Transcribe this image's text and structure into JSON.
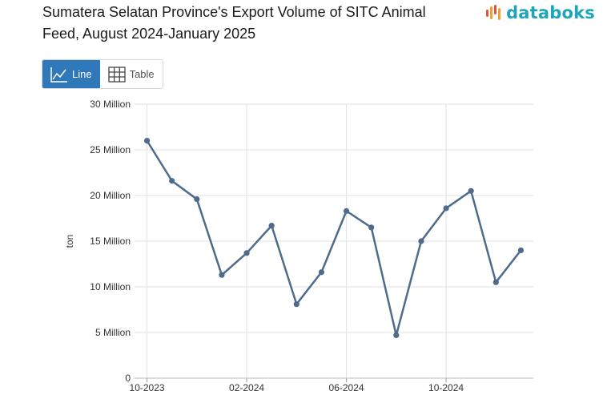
{
  "header": {
    "title": "Sumatera Selatan Province's Export Volume of SITC Animal Feed, August 2024-January 2025",
    "brand": "databoks",
    "brand_color": "#1fa5b9",
    "brand_mark_colors": [
      "#e8503a",
      "#f0a030",
      "#1fa5b9"
    ]
  },
  "view_toggle": {
    "line_label": "Line",
    "table_label": "Table",
    "active": "line",
    "active_color": "#2f79ba"
  },
  "chart_data": {
    "type": "line",
    "title": "Sumatera Selatan Province's Export Volume of SITC Animal Feed, August 2024-January 2025",
    "xlabel": "",
    "ylabel": "ton",
    "ylim": [
      0,
      30000000
    ],
    "y_ticks": [
      0,
      5000000,
      10000000,
      15000000,
      20000000,
      25000000,
      30000000
    ],
    "y_tick_labels": [
      "0",
      "5 Million",
      "10 Million",
      "15 Million",
      "20 Million",
      "25 Million",
      "30 Million"
    ],
    "x_tick_labels": [
      {
        "label": "10-2023",
        "index": 0.5
      },
      {
        "label": "02-2024",
        "index": 4.5
      },
      {
        "label": "06-2024",
        "index": 8.5
      },
      {
        "label": "10-2024",
        "index": 12.5
      }
    ],
    "grid": true,
    "line_color": "#4f6b8c",
    "series": [
      {
        "name": "ton",
        "values": [
          26000000,
          21600000,
          19600000,
          11300000,
          13700000,
          16700000,
          8100000,
          11600000,
          18300000,
          16500000,
          4700000,
          15000000,
          18600000,
          20500000,
          10500000,
          14000000
        ]
      }
    ]
  }
}
